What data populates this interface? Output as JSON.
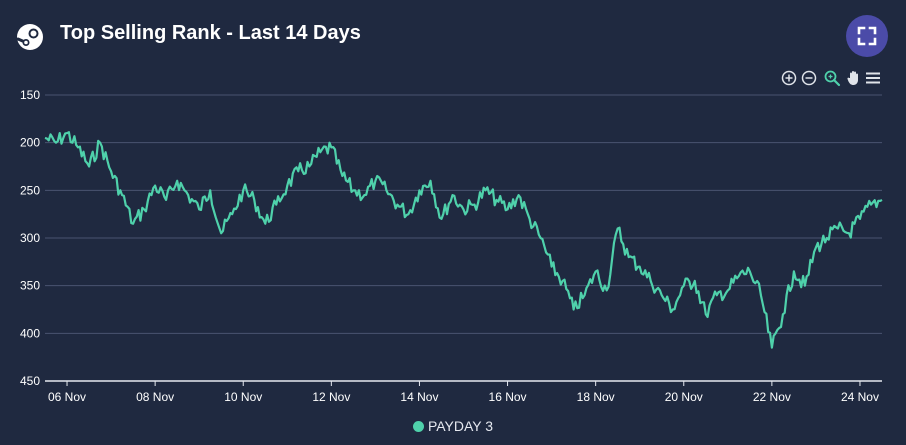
{
  "header": {
    "title": "Top Selling Rank - Last 14 Days",
    "logo_icon": "steam-logo-icon",
    "fullscreen_icon": "fullscreen-icon"
  },
  "toolbar": {
    "tools": [
      "zoom-in-icon",
      "zoom-out-icon",
      "magnifier-icon",
      "pan-hand-icon",
      "menu-icon"
    ]
  },
  "colors": {
    "background": "#1f2940",
    "series": "#4fd1ab",
    "grid": "#4a5470",
    "fullscreen_button": "#4b4ba8"
  },
  "chart_data": {
    "type": "line",
    "title": "Top Selling Rank - Last 14 Days",
    "y_reversed": true,
    "ylim": [
      150,
      450
    ],
    "y_ticks": [
      "150",
      "200",
      "250",
      "300",
      "350",
      "400",
      "450"
    ],
    "x_tick_labels": [
      "06 Nov",
      "08 Nov",
      "10 Nov",
      "12 Nov",
      "14 Nov",
      "16 Nov",
      "18 Nov",
      "20 Nov",
      "22 Nov",
      "24 Nov"
    ],
    "x_range": [
      "2023-11-05 12:00",
      "2023-11-24 12:00"
    ],
    "grid": true,
    "legend_position": "bottom-center",
    "series": [
      {
        "name": "PAYDAY 3",
        "x": [
          "2023-11-05 12:00",
          "2023-11-05 18:00",
          "2023-11-06 00:00",
          "2023-11-06 06:00",
          "2023-11-06 12:00",
          "2023-11-06 18:00",
          "2023-11-07 00:00",
          "2023-11-07 06:00",
          "2023-11-07 12:00",
          "2023-11-07 18:00",
          "2023-11-08 00:00",
          "2023-11-08 06:00",
          "2023-11-08 12:00",
          "2023-11-08 18:00",
          "2023-11-09 00:00",
          "2023-11-09 06:00",
          "2023-11-09 12:00",
          "2023-11-09 18:00",
          "2023-11-10 00:00",
          "2023-11-10 06:00",
          "2023-11-10 12:00",
          "2023-11-10 18:00",
          "2023-11-11 00:00",
          "2023-11-11 06:00",
          "2023-11-11 12:00",
          "2023-11-11 18:00",
          "2023-11-12 00:00",
          "2023-11-12 06:00",
          "2023-11-12 12:00",
          "2023-11-12 18:00",
          "2023-11-13 00:00",
          "2023-11-13 06:00",
          "2023-11-13 12:00",
          "2023-11-13 18:00",
          "2023-11-14 00:00",
          "2023-11-14 06:00",
          "2023-11-14 12:00",
          "2023-11-14 18:00",
          "2023-11-15 00:00",
          "2023-11-15 06:00",
          "2023-11-15 12:00",
          "2023-11-15 18:00",
          "2023-11-16 00:00",
          "2023-11-16 06:00",
          "2023-11-16 12:00",
          "2023-11-16 18:00",
          "2023-11-17 00:00",
          "2023-11-17 06:00",
          "2023-11-17 12:00",
          "2023-11-17 18:00",
          "2023-11-18 00:00",
          "2023-11-18 06:00",
          "2023-11-18 12:00",
          "2023-11-18 18:00",
          "2023-11-19 00:00",
          "2023-11-19 06:00",
          "2023-11-19 12:00",
          "2023-11-19 18:00",
          "2023-11-20 00:00",
          "2023-11-20 06:00",
          "2023-11-20 12:00",
          "2023-11-20 18:00",
          "2023-11-21 00:00",
          "2023-11-21 06:00",
          "2023-11-21 12:00",
          "2023-11-21 18:00",
          "2023-11-22 00:00",
          "2023-11-22 06:00",
          "2023-11-22 12:00",
          "2023-11-22 18:00",
          "2023-11-23 00:00",
          "2023-11-23 06:00",
          "2023-11-23 12:00",
          "2023-11-23 18:00",
          "2023-11-24 00:00",
          "2023-11-24 06:00",
          "2023-11-24 12:00"
        ],
        "values": [
          195,
          200,
          190,
          205,
          225,
          200,
          230,
          255,
          285,
          270,
          245,
          260,
          240,
          255,
          270,
          250,
          295,
          275,
          250,
          260,
          285,
          265,
          245,
          230,
          225,
          210,
          205,
          235,
          250,
          255,
          240,
          250,
          265,
          275,
          250,
          240,
          280,
          255,
          270,
          265,
          250,
          260,
          270,
          255,
          280,
          300,
          330,
          345,
          375,
          360,
          335,
          355,
          290,
          320,
          330,
          345,
          360,
          375,
          350,
          345,
          380,
          360,
          355,
          340,
          335,
          360,
          415,
          380,
          335,
          350,
          310,
          300,
          290,
          295,
          280,
          265,
          260
        ]
      }
    ]
  },
  "legend": {
    "items": [
      {
        "label": "PAYDAY 3"
      }
    ]
  }
}
